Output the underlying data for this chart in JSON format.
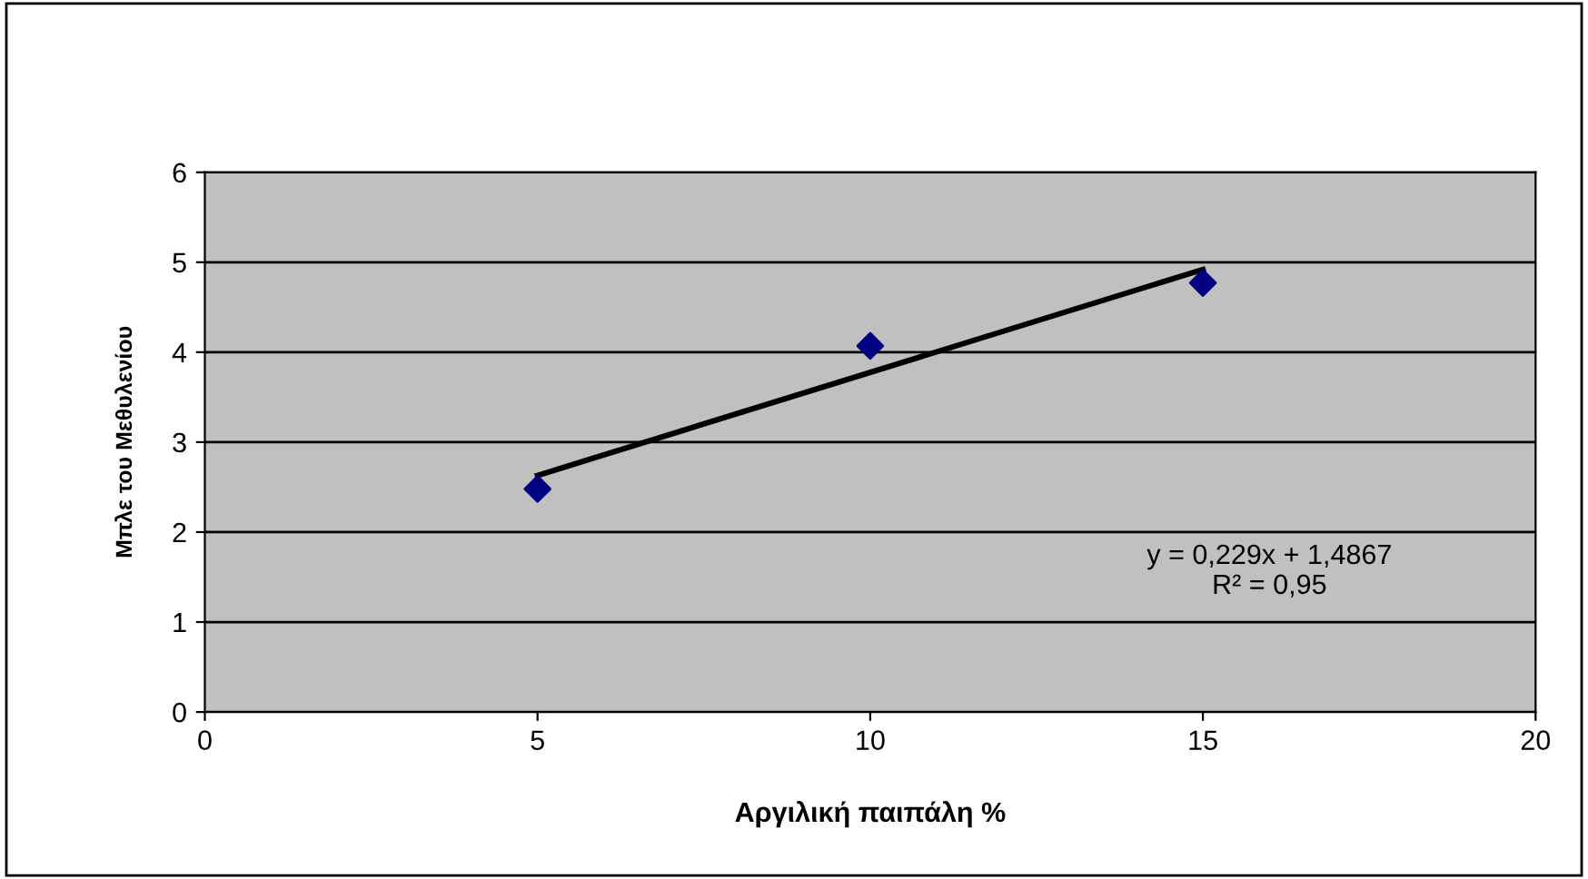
{
  "chart_data": {
    "type": "scatter",
    "xlabel": "Αργιλική παιπάλη %",
    "ylabel": "Μπλε του Μεθυλενίου",
    "xlim": [
      0,
      20
    ],
    "xticks": [
      0,
      5,
      10,
      15,
      20
    ],
    "ylim": [
      0,
      6
    ],
    "yticks": [
      0,
      1,
      2,
      3,
      4,
      5,
      6
    ],
    "grid": "y",
    "series": [
      {
        "color": "#000080",
        "marker": "diamond",
        "x": [
          5,
          10,
          15
        ],
        "values": [
          2.48,
          4.07,
          4.77
        ]
      },
      {
        "type": "line",
        "color": "#000000",
        "marker": "none",
        "x": [
          5,
          15
        ],
        "values": [
          2.63,
          4.92
        ]
      }
    ],
    "annotations": [
      "y = 0,229x + 1,4867\nR² = 0,95"
    ]
  }
}
